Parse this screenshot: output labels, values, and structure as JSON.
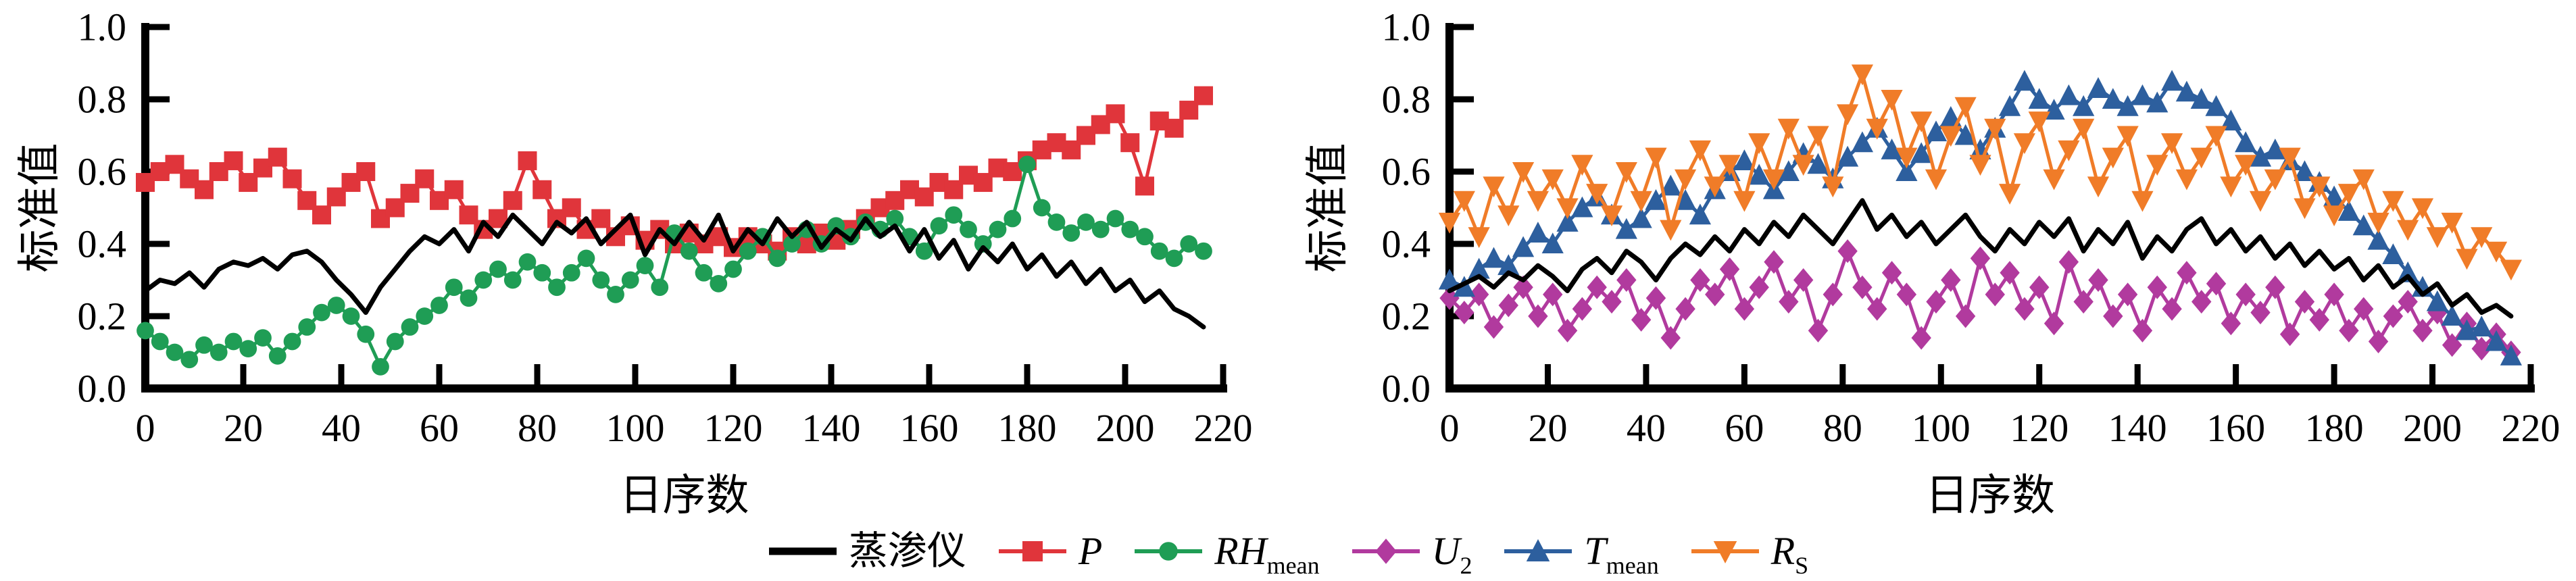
{
  "figure": {
    "background": "#ffffff",
    "ylabel": "标准值",
    "xlabel": "日序数"
  },
  "legend": {
    "items": [
      {
        "id": "lysimeter",
        "label_main": "蒸渗仪",
        "label_sub": "",
        "italic": false,
        "color": "#000000",
        "marker": "none"
      },
      {
        "id": "P",
        "label_main": "P",
        "label_sub": "",
        "italic": true,
        "color": "#e0353b",
        "marker": "square"
      },
      {
        "id": "RH_mean",
        "label_main": "RH",
        "label_sub": "mean",
        "italic": true,
        "color": "#1f9d55",
        "marker": "circle"
      },
      {
        "id": "U_2",
        "label_main": "U",
        "label_sub": "2",
        "italic": true,
        "color": "#b13a9e",
        "marker": "diamond"
      },
      {
        "id": "T_mean",
        "label_main": "T",
        "label_sub": "mean",
        "italic": true,
        "color": "#2d5f9e",
        "marker": "triangle-up"
      },
      {
        "id": "R_S",
        "label_main": "R",
        "label_sub": "S",
        "italic": true,
        "color": "#f07c28",
        "marker": "triangle-down"
      }
    ]
  },
  "chart_data": [
    {
      "type": "line",
      "title": "",
      "xlabel": "日序数",
      "ylabel": "标准值",
      "xlim": [
        0,
        220
      ],
      "ylim": [
        0.0,
        1.0
      ],
      "xticks": [
        0,
        20,
        40,
        60,
        80,
        100,
        120,
        140,
        160,
        180,
        200,
        220
      ],
      "yticks": [
        0.0,
        0.2,
        0.4,
        0.6,
        0.8,
        1.0
      ],
      "grid": false,
      "legend_position": "figure-bottom",
      "x": [
        0,
        3,
        6,
        9,
        12,
        15,
        18,
        21,
        24,
        27,
        30,
        33,
        36,
        39,
        42,
        45,
        48,
        51,
        54,
        57,
        60,
        63,
        66,
        69,
        72,
        75,
        78,
        81,
        84,
        87,
        90,
        93,
        96,
        99,
        102,
        105,
        108,
        111,
        114,
        117,
        120,
        123,
        126,
        129,
        132,
        135,
        138,
        141,
        144,
        147,
        150,
        153,
        156,
        159,
        162,
        165,
        168,
        171,
        174,
        177,
        180,
        183,
        186,
        189,
        192,
        195,
        198,
        201,
        204,
        207,
        210,
        213,
        216
      ],
      "series": [
        {
          "name": "蒸渗仪",
          "color": "#000000",
          "marker": "none",
          "values": [
            0.27,
            0.3,
            0.29,
            0.32,
            0.28,
            0.33,
            0.35,
            0.34,
            0.36,
            0.33,
            0.37,
            0.38,
            0.35,
            0.3,
            0.26,
            0.21,
            0.28,
            0.33,
            0.38,
            0.42,
            0.4,
            0.44,
            0.38,
            0.46,
            0.42,
            0.48,
            0.44,
            0.4,
            0.46,
            0.43,
            0.47,
            0.4,
            0.44,
            0.48,
            0.37,
            0.44,
            0.4,
            0.46,
            0.41,
            0.48,
            0.38,
            0.44,
            0.4,
            0.47,
            0.42,
            0.46,
            0.39,
            0.44,
            0.41,
            0.47,
            0.42,
            0.45,
            0.38,
            0.44,
            0.36,
            0.41,
            0.33,
            0.39,
            0.35,
            0.4,
            0.33,
            0.37,
            0.31,
            0.35,
            0.29,
            0.33,
            0.27,
            0.3,
            0.24,
            0.27,
            0.22,
            0.2,
            0.17
          ]
        },
        {
          "name": "P",
          "color": "#e0353b",
          "marker": "square",
          "values": [
            0.57,
            0.6,
            0.62,
            0.58,
            0.55,
            0.6,
            0.63,
            0.57,
            0.61,
            0.64,
            0.58,
            0.52,
            0.48,
            0.53,
            0.57,
            0.6,
            0.47,
            0.5,
            0.54,
            0.58,
            0.52,
            0.55,
            0.48,
            0.44,
            0.47,
            0.52,
            0.63,
            0.55,
            0.47,
            0.5,
            0.44,
            0.47,
            0.42,
            0.45,
            0.41,
            0.44,
            0.4,
            0.43,
            0.4,
            0.42,
            0.39,
            0.42,
            0.4,
            0.38,
            0.42,
            0.4,
            0.43,
            0.41,
            0.44,
            0.47,
            0.5,
            0.52,
            0.55,
            0.53,
            0.57,
            0.55,
            0.59,
            0.57,
            0.61,
            0.6,
            0.63,
            0.66,
            0.68,
            0.66,
            0.7,
            0.73,
            0.76,
            0.68,
            0.56,
            0.74,
            0.72,
            0.77,
            0.81
          ]
        },
        {
          "name": "RH_mean",
          "color": "#1f9d55",
          "marker": "circle",
          "values": [
            0.16,
            0.13,
            0.1,
            0.08,
            0.12,
            0.1,
            0.13,
            0.11,
            0.14,
            0.09,
            0.13,
            0.17,
            0.21,
            0.23,
            0.2,
            0.15,
            0.06,
            0.13,
            0.17,
            0.2,
            0.23,
            0.28,
            0.25,
            0.3,
            0.33,
            0.3,
            0.35,
            0.32,
            0.28,
            0.32,
            0.36,
            0.3,
            0.26,
            0.3,
            0.34,
            0.28,
            0.43,
            0.38,
            0.32,
            0.29,
            0.33,
            0.38,
            0.42,
            0.36,
            0.4,
            0.44,
            0.4,
            0.45,
            0.42,
            0.46,
            0.44,
            0.47,
            0.42,
            0.38,
            0.45,
            0.48,
            0.44,
            0.4,
            0.44,
            0.47,
            0.62,
            0.5,
            0.46,
            0.43,
            0.46,
            0.44,
            0.47,
            0.44,
            0.42,
            0.38,
            0.36,
            0.4,
            0.38
          ]
        }
      ]
    },
    {
      "type": "line",
      "title": "",
      "xlabel": "日序数",
      "ylabel": "标准值",
      "xlim": [
        0,
        220
      ],
      "ylim": [
        0.0,
        1.0
      ],
      "xticks": [
        0,
        20,
        40,
        60,
        80,
        100,
        120,
        140,
        160,
        180,
        200,
        220
      ],
      "yticks": [
        0.0,
        0.2,
        0.4,
        0.6,
        0.8,
        1.0
      ],
      "grid": false,
      "legend_position": "figure-bottom",
      "x": [
        0,
        3,
        6,
        9,
        12,
        15,
        18,
        21,
        24,
        27,
        30,
        33,
        36,
        39,
        42,
        45,
        48,
        51,
        54,
        57,
        60,
        63,
        66,
        69,
        72,
        75,
        78,
        81,
        84,
        87,
        90,
        93,
        96,
        99,
        102,
        105,
        108,
        111,
        114,
        117,
        120,
        123,
        126,
        129,
        132,
        135,
        138,
        141,
        144,
        147,
        150,
        153,
        156,
        159,
        162,
        165,
        168,
        171,
        174,
        177,
        180,
        183,
        186,
        189,
        192,
        195,
        198,
        201,
        204,
        207,
        210,
        213,
        216
      ],
      "series": [
        {
          "name": "蒸渗仪",
          "color": "#000000",
          "marker": "none",
          "values": [
            0.27,
            0.29,
            0.31,
            0.28,
            0.32,
            0.3,
            0.34,
            0.31,
            0.27,
            0.33,
            0.36,
            0.32,
            0.38,
            0.35,
            0.3,
            0.36,
            0.4,
            0.37,
            0.42,
            0.38,
            0.44,
            0.4,
            0.46,
            0.42,
            0.48,
            0.44,
            0.4,
            0.46,
            0.52,
            0.44,
            0.48,
            0.42,
            0.46,
            0.4,
            0.44,
            0.48,
            0.42,
            0.38,
            0.44,
            0.4,
            0.46,
            0.42,
            0.47,
            0.38,
            0.44,
            0.4,
            0.46,
            0.36,
            0.42,
            0.38,
            0.44,
            0.47,
            0.4,
            0.44,
            0.38,
            0.42,
            0.36,
            0.4,
            0.34,
            0.38,
            0.33,
            0.36,
            0.3,
            0.34,
            0.28,
            0.31,
            0.26,
            0.29,
            0.23,
            0.26,
            0.21,
            0.23,
            0.2
          ]
        },
        {
          "name": "U_2",
          "color": "#b13a9e",
          "marker": "diamond",
          "values": [
            0.25,
            0.21,
            0.26,
            0.17,
            0.23,
            0.28,
            0.2,
            0.26,
            0.16,
            0.22,
            0.28,
            0.24,
            0.3,
            0.19,
            0.25,
            0.14,
            0.22,
            0.3,
            0.26,
            0.33,
            0.22,
            0.28,
            0.35,
            0.24,
            0.3,
            0.16,
            0.26,
            0.38,
            0.28,
            0.22,
            0.32,
            0.26,
            0.14,
            0.24,
            0.3,
            0.2,
            0.36,
            0.26,
            0.32,
            0.22,
            0.28,
            0.18,
            0.35,
            0.24,
            0.3,
            0.2,
            0.26,
            0.16,
            0.28,
            0.22,
            0.32,
            0.24,
            0.29,
            0.18,
            0.26,
            0.21,
            0.28,
            0.15,
            0.24,
            0.19,
            0.26,
            0.16,
            0.22,
            0.13,
            0.2,
            0.24,
            0.16,
            0.21,
            0.12,
            0.18,
            0.11,
            0.15,
            0.1
          ]
        },
        {
          "name": "T_mean",
          "color": "#2d5f9e",
          "marker": "triangle-up",
          "values": [
            0.3,
            0.28,
            0.33,
            0.36,
            0.34,
            0.39,
            0.43,
            0.4,
            0.46,
            0.5,
            0.53,
            0.48,
            0.44,
            0.47,
            0.52,
            0.56,
            0.52,
            0.48,
            0.55,
            0.6,
            0.63,
            0.59,
            0.55,
            0.6,
            0.65,
            0.62,
            0.58,
            0.64,
            0.68,
            0.72,
            0.66,
            0.6,
            0.65,
            0.71,
            0.75,
            0.7,
            0.66,
            0.72,
            0.78,
            0.85,
            0.8,
            0.77,
            0.81,
            0.78,
            0.83,
            0.8,
            0.78,
            0.81,
            0.79,
            0.85,
            0.82,
            0.8,
            0.78,
            0.74,
            0.68,
            0.64,
            0.66,
            0.63,
            0.6,
            0.57,
            0.53,
            0.49,
            0.45,
            0.41,
            0.37,
            0.32,
            0.28,
            0.24,
            0.2,
            0.16,
            0.17,
            0.13,
            0.09
          ]
        },
        {
          "name": "R_S",
          "color": "#f07c28",
          "marker": "triangle-down",
          "values": [
            0.46,
            0.52,
            0.42,
            0.56,
            0.48,
            0.6,
            0.52,
            0.58,
            0.5,
            0.62,
            0.54,
            0.48,
            0.6,
            0.52,
            0.64,
            0.44,
            0.58,
            0.66,
            0.56,
            0.62,
            0.52,
            0.68,
            0.58,
            0.72,
            0.62,
            0.7,
            0.56,
            0.76,
            0.87,
            0.72,
            0.8,
            0.64,
            0.74,
            0.58,
            0.7,
            0.78,
            0.62,
            0.72,
            0.54,
            0.68,
            0.74,
            0.58,
            0.66,
            0.72,
            0.56,
            0.64,
            0.7,
            0.52,
            0.62,
            0.68,
            0.58,
            0.64,
            0.7,
            0.56,
            0.62,
            0.52,
            0.58,
            0.64,
            0.5,
            0.56,
            0.48,
            0.54,
            0.58,
            0.46,
            0.52,
            0.44,
            0.5,
            0.42,
            0.46,
            0.36,
            0.42,
            0.38,
            0.33
          ]
        }
      ]
    }
  ]
}
